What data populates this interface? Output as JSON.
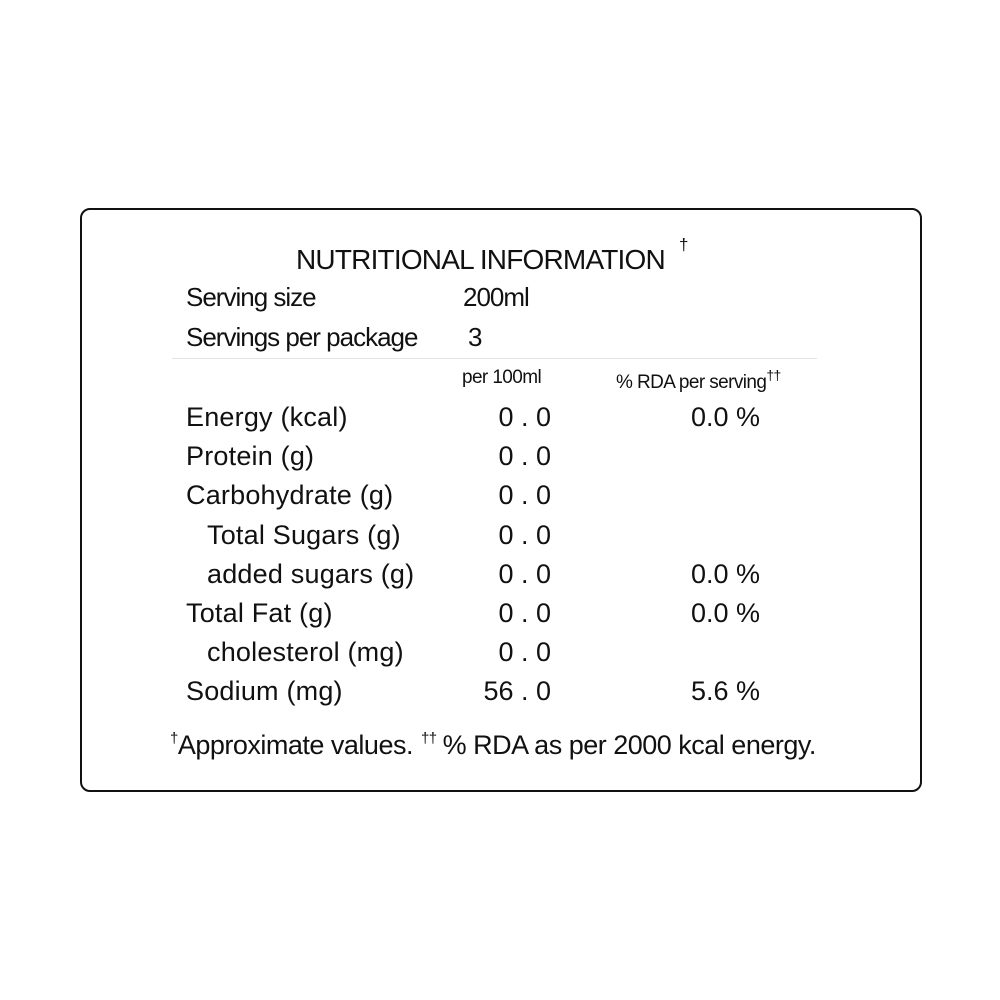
{
  "title": "NUTRITIONAL INFORMATION",
  "title_mark": "†",
  "serving": [
    {
      "label": "Serving size",
      "value": "200ml"
    },
    {
      "label": "Servings per package",
      "value": "3"
    }
  ],
  "columns": {
    "per_100ml": "per 100ml",
    "rda": "% RDA per serving",
    "rda_mark": "††"
  },
  "rows": [
    {
      "name": "Energy (kcal)",
      "per_100ml": "0 . 0",
      "rda": "0.0 %",
      "indent": false
    },
    {
      "name": "Protein (g)",
      "per_100ml": "0 . 0",
      "indent": false
    },
    {
      "name": "Carbohydrate (g)",
      "per_100ml": "0 . 0",
      "indent": false
    },
    {
      "name": "Total Sugars (g)",
      "per_100ml": "0 . 0",
      "indent": true
    },
    {
      "name": "added sugars (g)",
      "per_100ml": "0 . 0",
      "rda": "0.0 %",
      "indent": true
    },
    {
      "name": "Total Fat (g)",
      "per_100ml": "0 . 0",
      "rda": "0.0 %",
      "indent": false
    },
    {
      "name": "cholesterol (mg)",
      "per_100ml": "0 . 0",
      "indent": true
    },
    {
      "name": "Sodium (mg)",
      "per_100ml": "56 . 0",
      "rda": "5.6 %",
      "indent": false
    }
  ],
  "footnote": {
    "mark1": "†",
    "text1": "Approximate values.",
    "mark2": "††",
    "text2": "% RDA as per 2000 kcal energy."
  }
}
